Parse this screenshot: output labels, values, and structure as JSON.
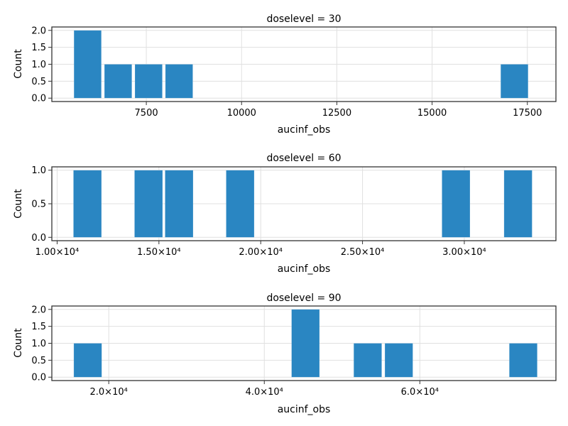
{
  "chart_data": [
    {
      "type": "bar",
      "subtype": "histogram",
      "title": "doselevel = 30",
      "xlabel": "aucinf_obs",
      "ylabel": "Count",
      "color": "#2a86c2",
      "bin_width": 720,
      "bins": [
        {
          "start": 5600,
          "count": 2
        },
        {
          "start": 6400,
          "count": 1
        },
        {
          "start": 7200,
          "count": 1
        },
        {
          "start": 8000,
          "count": 1
        },
        {
          "start": 16800,
          "count": 1
        }
      ],
      "xlim": [
        5020,
        18250
      ],
      "ylim": [
        -0.1,
        2.1
      ],
      "xticks": [
        {
          "value": 7500,
          "label": "7500"
        },
        {
          "value": 10000,
          "label": "10000"
        },
        {
          "value": 12500,
          "label": "12500"
        },
        {
          "value": 15000,
          "label": "15000"
        },
        {
          "value": 17500,
          "label": "17500"
        }
      ],
      "yticks": [
        {
          "value": 0,
          "label": "0.0"
        },
        {
          "value": 0.5,
          "label": "0.5"
        },
        {
          "value": 1.0,
          "label": "1.0"
        },
        {
          "value": 1.5,
          "label": "1.5"
        },
        {
          "value": 2.0,
          "label": "2.0"
        }
      ]
    },
    {
      "type": "bar",
      "subtype": "histogram",
      "title": "doselevel = 60",
      "xlabel": "aucinf_obs",
      "ylabel": "Count",
      "color": "#2a86c2",
      "bin_width": 1380,
      "bins": [
        {
          "start": 10800,
          "count": 1
        },
        {
          "start": 13800,
          "count": 1
        },
        {
          "start": 15300,
          "count": 1
        },
        {
          "start": 18300,
          "count": 1
        },
        {
          "start": 28900,
          "count": 1
        },
        {
          "start": 31950,
          "count": 1
        }
      ],
      "xlim": [
        9740,
        34500
      ],
      "ylim": [
        -0.05,
        1.05
      ],
      "xticks": [
        {
          "value": 10000,
          "label": "1.00×10⁴"
        },
        {
          "value": 15000,
          "label": "1.50×10⁴"
        },
        {
          "value": 20000,
          "label": "2.00×10⁴"
        },
        {
          "value": 25000,
          "label": "2.50×10⁴"
        },
        {
          "value": 30000,
          "label": "3.00×10⁴"
        }
      ],
      "yticks": [
        {
          "value": 0,
          "label": "0.0"
        },
        {
          "value": 0.5,
          "label": "0.5"
        },
        {
          "value": 1.0,
          "label": "1.0"
        }
      ]
    },
    {
      "type": "bar",
      "subtype": "histogram",
      "title": "doselevel = 90",
      "xlabel": "aucinf_obs",
      "ylabel": "Count",
      "color": "#2a86c2",
      "bin_width": 3600,
      "bins": [
        {
          "start": 15500,
          "count": 1
        },
        {
          "start": 43500,
          "count": 2
        },
        {
          "start": 51500,
          "count": 1
        },
        {
          "start": 55500,
          "count": 1
        },
        {
          "start": 71500,
          "count": 1
        }
      ],
      "xlim": [
        12680,
        77500
      ],
      "ylim": [
        -0.1,
        2.1
      ],
      "xticks": [
        {
          "value": 20000,
          "label": "2.0×10⁴"
        },
        {
          "value": 40000,
          "label": "4.0×10⁴"
        },
        {
          "value": 60000,
          "label": "6.0×10⁴"
        }
      ],
      "yticks": [
        {
          "value": 0,
          "label": "0.0"
        },
        {
          "value": 0.5,
          "label": "0.5"
        },
        {
          "value": 1.0,
          "label": "1.0"
        },
        {
          "value": 1.5,
          "label": "1.5"
        },
        {
          "value": 2.0,
          "label": "2.0"
        }
      ]
    }
  ]
}
